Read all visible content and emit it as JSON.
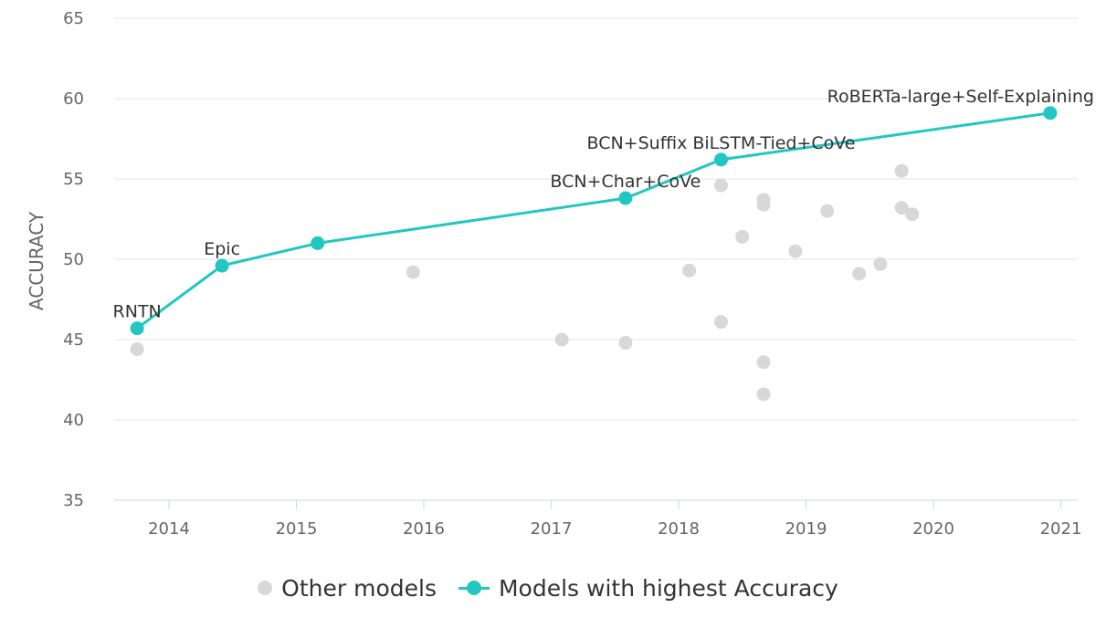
{
  "chart_data": {
    "type": "scatter",
    "title": "",
    "xlabel": "",
    "ylabel": "ACCURACY",
    "xlim": [
      "2013-07-01",
      "2021-02-01"
    ],
    "ylim": [
      35,
      65
    ],
    "x_ticks": [
      "2014",
      "2015",
      "2016",
      "2017",
      "2018",
      "2019",
      "2020",
      "2021"
    ],
    "y_ticks": [
      35,
      40,
      45,
      50,
      55,
      60,
      65
    ],
    "grid": true,
    "legend_position": "bottom",
    "series": [
      {
        "name": "Other models",
        "style": "scatter",
        "color": "#d8d8d8",
        "points": [
          {
            "x": "2013-10",
            "y": 44.4
          },
          {
            "x": "2015-12",
            "y": 49.2
          },
          {
            "x": "2017-02",
            "y": 45.0
          },
          {
            "x": "2017-08",
            "y": 44.8
          },
          {
            "x": "2018-02",
            "y": 49.3
          },
          {
            "x": "2018-05",
            "y": 54.6
          },
          {
            "x": "2018-05",
            "y": 46.1
          },
          {
            "x": "2018-07",
            "y": 51.4
          },
          {
            "x": "2018-09",
            "y": 53.4
          },
          {
            "x": "2018-09",
            "y": 53.7
          },
          {
            "x": "2018-09",
            "y": 43.6
          },
          {
            "x": "2018-09",
            "y": 41.6
          },
          {
            "x": "2018-12",
            "y": 50.5
          },
          {
            "x": "2019-03",
            "y": 53.0
          },
          {
            "x": "2019-06",
            "y": 49.1
          },
          {
            "x": "2019-08",
            "y": 49.7
          },
          {
            "x": "2019-10",
            "y": 55.5
          },
          {
            "x": "2019-10",
            "y": 53.2
          },
          {
            "x": "2019-11",
            "y": 52.8
          }
        ]
      },
      {
        "name": "Models with highest Accuracy",
        "style": "line",
        "color": "#21c7c0",
        "points": [
          {
            "x": "2013-10",
            "y": 45.7,
            "label": "RNTN"
          },
          {
            "x": "2014-06",
            "y": 49.6,
            "label": "Epic"
          },
          {
            "x": "2015-03",
            "y": 51.0,
            "label": ""
          },
          {
            "x": "2017-08",
            "y": 53.8,
            "label": "BCN+Char+CoVe"
          },
          {
            "x": "2018-05",
            "y": 56.2,
            "label": "BCN+Suffix BiLSTM-Tied+CoVe"
          },
          {
            "x": "2020-12",
            "y": 59.1,
            "label": "RoBERTa-large+Self-Explaining"
          }
        ]
      }
    ]
  },
  "legend": {
    "other_label": "Other models",
    "best_label": "Models with highest Accuracy"
  }
}
